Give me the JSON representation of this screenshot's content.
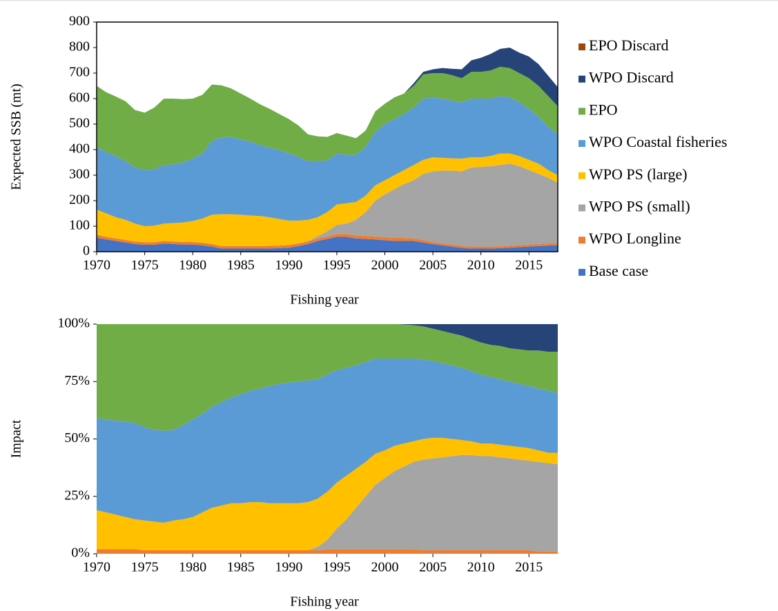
{
  "chart_data": [
    {
      "type": "area",
      "stacked": true,
      "box": true,
      "grid": false,
      "legend": "right",
      "xlabel": "Fishing year",
      "ylabel": "Expected SSB (mt)",
      "xlim": [
        1970,
        2018
      ],
      "xticks": [
        1970,
        1975,
        1980,
        1985,
        1990,
        1995,
        2000,
        2005,
        2010,
        2015
      ],
      "ylim": [
        0,
        900
      ],
      "yticks": [
        0,
        100,
        200,
        300,
        400,
        500,
        600,
        700,
        800,
        900
      ],
      "x": [
        1970,
        1971,
        1972,
        1973,
        1974,
        1975,
        1976,
        1977,
        1978,
        1979,
        1980,
        1981,
        1982,
        1983,
        1984,
        1985,
        1986,
        1987,
        1988,
        1989,
        1990,
        1991,
        1992,
        1993,
        1994,
        1995,
        1996,
        1997,
        1998,
        1999,
        2000,
        2001,
        2002,
        2003,
        2004,
        2005,
        2006,
        2007,
        2008,
        2009,
        2010,
        2011,
        2012,
        2013,
        2014,
        2015,
        2016,
        2017,
        2018
      ],
      "series": [
        {
          "name": "Base case",
          "color": "#4472c4",
          "values": [
            55,
            48,
            42,
            36,
            30,
            27,
            27,
            32,
            30,
            28,
            28,
            25,
            20,
            12,
            12,
            12,
            12,
            12,
            13,
            14,
            16,
            22,
            30,
            42,
            50,
            58,
            58,
            52,
            50,
            48,
            45,
            42,
            42,
            42,
            36,
            30,
            25,
            20,
            15,
            12,
            12,
            12,
            14,
            16,
            18,
            20,
            22,
            24,
            25
          ]
        },
        {
          "name": "WPO Longline",
          "color": "#ed7d31",
          "values": [
            12,
            10,
            10,
            10,
            10,
            10,
            10,
            10,
            10,
            10,
            10,
            10,
            10,
            10,
            10,
            10,
            10,
            10,
            10,
            10,
            10,
            10,
            10,
            10,
            10,
            12,
            12,
            12,
            12,
            12,
            12,
            12,
            12,
            10,
            10,
            8,
            8,
            8,
            8,
            8,
            8,
            8,
            8,
            8,
            8,
            8,
            8,
            8,
            8
          ]
        },
        {
          "name": "WPO PS (small)",
          "color": "#a5a5a5",
          "values": [
            0,
            0,
            0,
            0,
            0,
            0,
            0,
            0,
            0,
            0,
            0,
            0,
            0,
            0,
            0,
            0,
            0,
            0,
            0,
            0,
            0,
            0,
            2,
            8,
            20,
            35,
            40,
            61,
            93,
            140,
            168,
            191,
            211,
            228,
            259,
            277,
            285,
            290,
            292,
            310,
            312,
            315,
            318,
            321,
            309,
            292,
            275,
            258,
            237
          ]
        },
        {
          "name": "WPO PS (large)",
          "color": "#ffc000",
          "values": [
            98,
            92,
            83,
            79,
            70,
            63,
            65,
            68,
            72,
            77,
            82,
            95,
            115,
            125,
            125,
            123,
            120,
            118,
            112,
            104,
            96,
            90,
            83,
            75,
            75,
            80,
            80,
            70,
            65,
            60,
            55,
            55,
            55,
            60,
            55,
            55,
            50,
            48,
            50,
            40,
            38,
            40,
            45,
            40,
            40,
            40,
            40,
            30,
            30
          ]
        },
        {
          "name": "WPO Coastal fisheries",
          "color": "#5b9bd5",
          "values": [
            245,
            240,
            240,
            230,
            220,
            220,
            220,
            230,
            230,
            235,
            245,
            255,
            290,
            301,
            303,
            295,
            290,
            278,
            273,
            270,
            263,
            250,
            230,
            220,
            203,
            200,
            190,
            185,
            190,
            210,
            220,
            220,
            220,
            225,
            240,
            235,
            232,
            226,
            220,
            230,
            230,
            225,
            225,
            220,
            210,
            200,
            185,
            170,
            160
          ]
        },
        {
          "name": "EPO",
          "color": "#70ad47",
          "values": [
            240,
            235,
            233,
            235,
            225,
            225,
            243,
            260,
            258,
            248,
            235,
            230,
            220,
            204,
            190,
            180,
            168,
            160,
            152,
            142,
            135,
            123,
            105,
            97,
            92,
            80,
            75,
            65,
            65,
            80,
            80,
            85,
            80,
            85,
            95,
            95,
            100,
            100,
            95,
            105,
            105,
            110,
            115,
            115,
            115,
            120,
            120,
            120,
            110
          ]
        },
        {
          "name": "WPO Discard",
          "color": "#264478",
          "values": [
            0,
            0,
            0,
            0,
            0,
            0,
            0,
            0,
            0,
            0,
            0,
            0,
            0,
            0,
            0,
            0,
            0,
            0,
            0,
            0,
            0,
            0,
            0,
            0,
            0,
            0,
            0,
            0,
            0,
            0,
            0,
            0,
            0,
            10,
            10,
            15,
            20,
            25,
            35,
            45,
            55,
            65,
            70,
            80,
            80,
            85,
            85,
            80,
            75
          ]
        },
        {
          "name": "EPO Discard",
          "color": "#9e480e",
          "values": [
            0,
            0,
            0,
            0,
            0,
            0,
            0,
            0,
            0,
            0,
            0,
            0,
            0,
            0,
            0,
            0,
            0,
            0,
            0,
            0,
            0,
            0,
            0,
            0,
            0,
            0,
            0,
            0,
            0,
            0,
            0,
            0,
            0,
            0,
            0,
            0,
            0,
            0,
            0,
            0,
            0,
            0,
            0,
            0,
            0,
            0,
            0,
            0,
            0
          ]
        }
      ]
    },
    {
      "type": "area",
      "stacked": true,
      "box": false,
      "grid": false,
      "xlabel": "Fishing year",
      "ylabel": "Impact",
      "xlim": [
        1970,
        2018
      ],
      "xticks": [
        1970,
        1975,
        1980,
        1985,
        1990,
        1995,
        2000,
        2005,
        2010,
        2015
      ],
      "ylim": [
        0,
        100
      ],
      "yticks": [
        {
          "value": 0,
          "label": "0%"
        },
        {
          "value": 25,
          "label": "25%"
        },
        {
          "value": 50,
          "label": "50%"
        },
        {
          "value": 75,
          "label": "75%"
        },
        {
          "value": 100,
          "label": "100%"
        }
      ],
      "x": [
        1970,
        1971,
        1972,
        1973,
        1974,
        1975,
        1976,
        1977,
        1978,
        1979,
        1980,
        1981,
        1982,
        1983,
        1984,
        1985,
        1986,
        1987,
        1988,
        1989,
        1990,
        1991,
        1992,
        1993,
        1994,
        1995,
        1996,
        1997,
        1998,
        1999,
        2000,
        2001,
        2002,
        2003,
        2004,
        2005,
        2006,
        2007,
        2008,
        2009,
        2010,
        2011,
        2012,
        2013,
        2014,
        2015,
        2016,
        2017,
        2018
      ],
      "series": [
        {
          "color": "#ed7d31",
          "values": [
            2,
            2,
            2,
            2,
            2,
            1.5,
            1.5,
            1.5,
            1.5,
            1.5,
            1.5,
            1.5,
            1.5,
            1.5,
            1.5,
            1.5,
            1.5,
            1.5,
            1.5,
            1.5,
            1.5,
            1.5,
            1.5,
            1.5,
            2,
            2,
            2,
            2,
            2,
            2,
            2,
            2,
            2,
            2,
            1.5,
            1.5,
            1.5,
            1.5,
            1.5,
            1.5,
            1.5,
            1.5,
            1.5,
            1.5,
            1.5,
            1.5,
            1,
            1,
            1
          ]
        },
        {
          "color": "#a5a5a5",
          "values": [
            0,
            0,
            0,
            0,
            0,
            0,
            0,
            0,
            0,
            0,
            0,
            0,
            0,
            0,
            0,
            0,
            0,
            0,
            0,
            0,
            0,
            0,
            0,
            1.5,
            4,
            9,
            13,
            18,
            23,
            28,
            31,
            34,
            36,
            38,
            39.5,
            40,
            40.5,
            41,
            41.5,
            41.5,
            41,
            41,
            40.5,
            40,
            39.5,
            39,
            39,
            38.5,
            38
          ]
        },
        {
          "color": "#ffc000",
          "values": [
            17,
            16,
            15,
            14,
            13,
            13,
            12.5,
            12,
            13,
            13.5,
            14.5,
            16.5,
            18.5,
            19.5,
            20.5,
            20.5,
            21,
            21,
            20.5,
            20.5,
            20.5,
            20.5,
            21,
            21,
            21,
            20,
            19,
            17,
            15,
            13.5,
            12,
            11,
            10,
            9,
            9,
            9,
            8.5,
            7.5,
            6.5,
            6,
            5.5,
            5.5,
            5.5,
            5.5,
            5.5,
            5.5,
            5,
            4.5,
            5
          ]
        },
        {
          "color": "#5b9bd5",
          "values": [
            40,
            40.5,
            41,
            41.5,
            42,
            40.5,
            40,
            40,
            39.5,
            41,
            42.5,
            43,
            44,
            45,
            46,
            47.5,
            48.5,
            49.5,
            51,
            52,
            52.5,
            53,
            53,
            52,
            51,
            49,
            47,
            45,
            43.5,
            41.5,
            40,
            38,
            37,
            36,
            34.5,
            33.5,
            32.5,
            32,
            31.5,
            30.5,
            30,
            29,
            28.5,
            28,
            27.5,
            27,
            27,
            27,
            26
          ]
        },
        {
          "color": "#70ad47",
          "values": [
            41,
            41.5,
            42,
            42.5,
            43,
            45,
            46,
            46.5,
            46,
            44,
            41.5,
            39,
            36,
            34,
            32,
            30.5,
            29,
            28,
            27,
            26,
            25.5,
            25,
            24.5,
            24,
            22,
            20,
            19,
            18,
            16.5,
            15,
            15,
            15,
            14.8,
            14.5,
            14.5,
            14,
            14,
            14,
            14,
            14,
            14,
            14,
            14.5,
            14.5,
            15,
            15.5,
            16.5,
            17,
            18
          ]
        },
        {
          "color": "#264478",
          "values": [
            0,
            0,
            0,
            0,
            0,
            0,
            0,
            0,
            0,
            0,
            0,
            0,
            0,
            0,
            0,
            0,
            0,
            0,
            0,
            0,
            0,
            0,
            0,
            0,
            0,
            0,
            0,
            0,
            0,
            0,
            0,
            0,
            0.2,
            0.5,
            1,
            2,
            3,
            4,
            5,
            6.5,
            8,
            9,
            9.5,
            10.5,
            11,
            11.5,
            11.5,
            12,
            12
          ]
        },
        {
          "color": "#9e480e",
          "values": [
            0,
            0,
            0,
            0,
            0,
            0,
            0,
            0,
            0,
            0,
            0,
            0,
            0,
            0,
            0,
            0,
            0,
            0,
            0,
            0,
            0,
            0,
            0,
            0,
            0,
            0,
            0,
            0,
            0,
            0,
            0,
            0,
            0,
            0,
            0,
            0,
            0,
            0,
            0,
            0,
            0,
            0,
            0,
            0,
            0,
            0,
            0,
            0,
            0
          ]
        }
      ]
    }
  ]
}
